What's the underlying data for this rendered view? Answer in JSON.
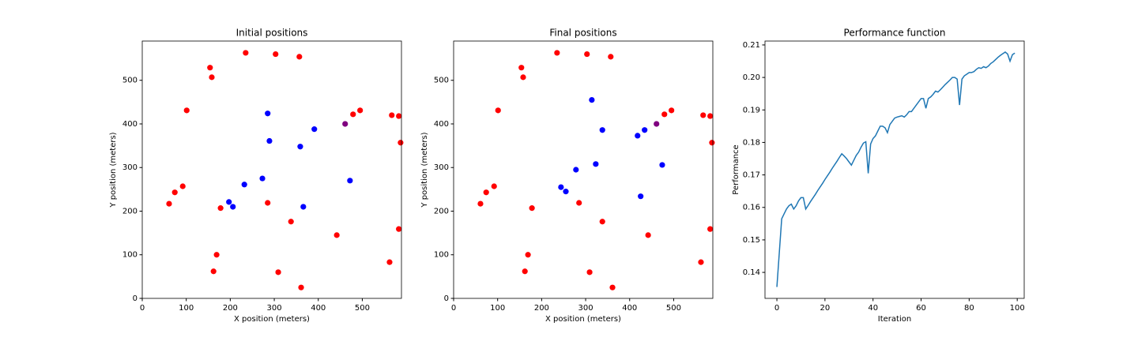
{
  "chart_data": [
    {
      "type": "scatter",
      "title": "Initial positions",
      "x_label": "X position (meters)",
      "y_label": "Y position (meters)",
      "xlim": [
        0,
        589
      ],
      "ylim": [
        0,
        590
      ],
      "xticks": [
        0,
        100,
        200,
        300,
        400,
        500
      ],
      "yticks": [
        0,
        100,
        200,
        300,
        400,
        500
      ],
      "series": [
        {
          "color": "#ff0000",
          "x": [
            154,
            158,
            101,
            235,
            303,
            357,
            479,
            495,
            567,
            583,
            587,
            74,
            92,
            61,
            178,
            285,
            338,
            169,
            162,
            309,
            361,
            442,
            562,
            583
          ],
          "values": [
            529,
            507,
            431,
            563,
            560,
            554,
            422,
            431,
            420,
            418,
            357,
            243,
            257,
            217,
            207,
            219,
            176,
            100,
            62,
            60,
            25,
            145,
            83,
            159
          ]
        },
        {
          "color": "#0000ff",
          "x": [
            285,
            289,
            359,
            391,
            472,
            366,
            273,
            232,
            197,
            206
          ],
          "values": [
            424,
            361,
            348,
            388,
            270,
            210,
            275,
            261,
            221,
            210
          ]
        },
        {
          "color": "#800080",
          "x": [
            461
          ],
          "values": [
            400
          ]
        }
      ]
    },
    {
      "type": "scatter",
      "title": "Final positions",
      "x_label": "X position (meters)",
      "y_label": "Y position (meters)",
      "xlim": [
        0,
        589
      ],
      "ylim": [
        0,
        590
      ],
      "xticks": [
        0,
        100,
        200,
        300,
        400,
        500
      ],
      "yticks": [
        0,
        100,
        200,
        300,
        400,
        500
      ],
      "series": [
        {
          "color": "#ff0000",
          "x": [
            154,
            158,
            101,
            235,
            303,
            357,
            479,
            495,
            567,
            583,
            587,
            74,
            92,
            61,
            178,
            285,
            338,
            169,
            162,
            309,
            361,
            442,
            562,
            583
          ],
          "values": [
            529,
            507,
            431,
            563,
            560,
            554,
            422,
            431,
            420,
            418,
            357,
            243,
            257,
            217,
            207,
            219,
            176,
            100,
            62,
            60,
            25,
            145,
            83,
            159
          ]
        },
        {
          "color": "#0000ff",
          "x": [
            314,
            338,
            418,
            434,
            474,
            323,
            278,
            244,
            255,
            425
          ],
          "values": [
            455,
            386,
            373,
            386,
            306,
            308,
            295,
            255,
            245,
            234
          ]
        },
        {
          "color": "#800080",
          "x": [
            461
          ],
          "values": [
            400
          ]
        }
      ]
    },
    {
      "type": "line",
      "title": "Performance function",
      "x_label": "Iteration",
      "y_label": "Performance",
      "xlim": [
        -4.95,
        102.9
      ],
      "ylim": [
        0.132,
        0.2112
      ],
      "xticks": [
        0,
        20,
        40,
        60,
        80,
        100
      ],
      "yticks": [
        0.14,
        0.15,
        0.16,
        0.17,
        0.18,
        0.19,
        {
          "value": 0.2,
          "label": "0.20"
        },
        0.21
      ],
      "series": [
        {
          "color": "#1f77b4",
          "x": [
            0,
            1,
            2,
            3,
            4,
            5,
            6,
            7,
            8,
            9,
            10,
            11,
            12,
            13,
            14,
            15,
            16,
            17,
            18,
            19,
            20,
            21,
            22,
            23,
            24,
            25,
            26,
            27,
            28,
            29,
            30,
            31,
            32,
            33,
            34,
            35,
            36,
            37,
            38,
            39,
            40,
            41,
            42,
            43,
            44,
            45,
            46,
            47,
            48,
            49,
            50,
            51,
            52,
            53,
            54,
            55,
            56,
            57,
            58,
            59,
            60,
            61,
            62,
            63,
            64,
            65,
            66,
            67,
            68,
            69,
            70,
            71,
            72,
            73,
            74,
            75,
            76,
            77,
            78,
            79,
            80,
            81,
            82,
            83,
            84,
            85,
            86,
            87,
            88,
            89,
            90,
            91,
            92,
            93,
            94,
            95,
            96,
            97,
            98,
            99
          ],
          "values": [
            0.1355,
            0.146,
            0.1565,
            0.158,
            0.1595,
            0.1605,
            0.161,
            0.1595,
            0.1605,
            0.162,
            0.163,
            0.163,
            0.1595,
            0.1606,
            0.1618,
            0.1629,
            0.164,
            0.1652,
            0.1663,
            0.1674,
            0.1686,
            0.1697,
            0.1708,
            0.172,
            0.1731,
            0.1742,
            0.1754,
            0.1765,
            0.1758,
            0.175,
            0.174,
            0.173,
            0.1745,
            0.176,
            0.177,
            0.1785,
            0.1798,
            0.1802,
            0.1705,
            0.1795,
            0.1812,
            0.182,
            0.1835,
            0.185,
            0.185,
            0.1845,
            0.183,
            0.1855,
            0.1865,
            0.1875,
            0.1878,
            0.188,
            0.1882,
            0.1878,
            0.1885,
            0.1895,
            0.1895,
            0.1905,
            0.1915,
            0.1925,
            0.1935,
            0.1935,
            0.1905,
            0.1935,
            0.194,
            0.1948,
            0.1958,
            0.1955,
            0.1962,
            0.197,
            0.1978,
            0.1985,
            0.1992,
            0.2,
            0.2,
            0.1995,
            0.1915,
            0.1995,
            0.2005,
            0.201,
            0.2015,
            0.2015,
            0.2018,
            0.2025,
            0.203,
            0.2028,
            0.2033,
            0.203,
            0.2035,
            0.2043,
            0.2048,
            0.2055,
            0.2062,
            0.2068,
            0.2073,
            0.2078,
            0.2072,
            0.205,
            0.207,
            0.2075
          ]
        }
      ]
    }
  ]
}
